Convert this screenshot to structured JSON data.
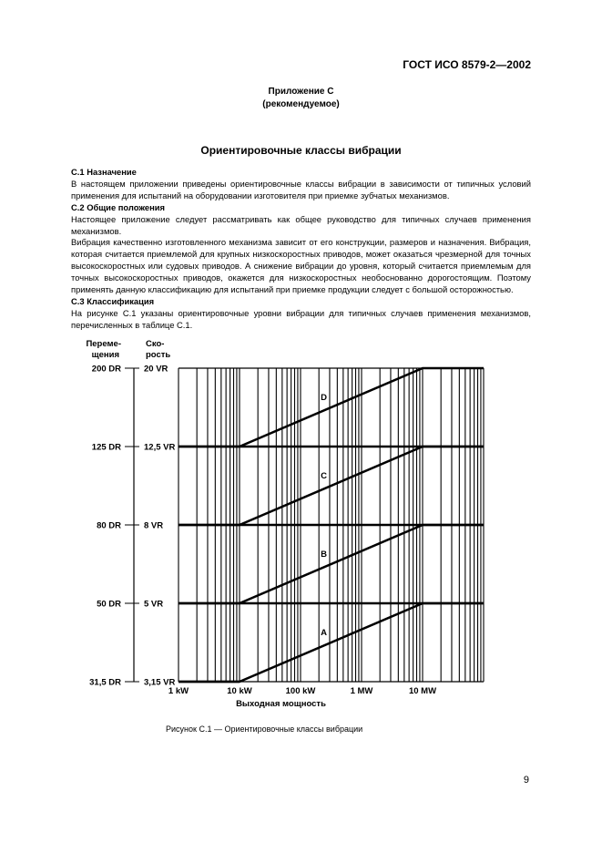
{
  "header": {
    "standard": "ГОСТ ИСО 8579-2—2002"
  },
  "annex": {
    "line1": "Приложение С",
    "line2": "(рекомендуемое)"
  },
  "title": "Ориентировочные классы вибрации",
  "sections": [
    {
      "heading": "С.1  Назначение",
      "paragraphs": [
        "В настоящем приложении приведены ориентировочные классы вибрации в зависимости от типичных условий применения для испытаний на оборудовании изготовителя при приемке зубчатых механизмов."
      ]
    },
    {
      "heading": "С.2  Общие положения",
      "paragraphs": [
        "Настоящее приложение следует рассматривать как общее руководство для типичных случаев применения механизмов.",
        "Вибрация качественно изготовленного механизма зависит от его конструкции, размеров и назначения. Вибрация, которая считается приемлемой для крупных низкоскоростных приводов, может оказаться чрезмерной для точных высокоскоростных или судовых приводов. А снижение вибрации до уровня, который считается приемлемым для точных высокоскоростных приводов, окажется для низкоскоростных необоснованно дорогостоящим. Поэтому применять данную классификацию для испытаний при приемке продукции следует с большой осторожностью."
      ]
    },
    {
      "heading": "С.3  Классификация",
      "paragraphs": [
        "На рисунке С.1  указаны ориентировочные уровни вибрации для типичных случаев применения механизмов, перечисленных в таблице С.1."
      ]
    }
  ],
  "chart_data": {
    "type": "line",
    "x_scale": "log",
    "xlabel": "Выходная мощность",
    "x_ticks": [
      "1 kW",
      "10 kW",
      "100 kW",
      "1 MW",
      "10 MW"
    ],
    "x_range_kW": [
      1,
      100000
    ],
    "y_scale": "log",
    "y_axis_left_title": [
      "Переме-",
      "щения"
    ],
    "y_axis_right_title": [
      "Ско-",
      "рость"
    ],
    "y_ticks_displacement": [
      "200 DR",
      "125 DR",
      "80 DR",
      "50 DR",
      "31,5 DR"
    ],
    "y_ticks_velocity": [
      "20 VR",
      "12,5 VR",
      "8 VR",
      "5 VR",
      "3,15 VR"
    ],
    "y_levels_velocity": [
      20,
      12.5,
      8,
      5,
      3.15
    ],
    "grid": true,
    "series": [
      {
        "name": "A",
        "x_kW": [
          1,
          10,
          10000,
          100000
        ],
        "y_VR": [
          3.15,
          3.15,
          5,
          5
        ]
      },
      {
        "name": "B",
        "x_kW": [
          1,
          10,
          10000,
          100000
        ],
        "y_VR": [
          5,
          5,
          8,
          8
        ]
      },
      {
        "name": "C",
        "x_kW": [
          1,
          10,
          10000,
          100000
        ],
        "y_VR": [
          8,
          8,
          12.5,
          12.5
        ]
      },
      {
        "name": "D",
        "x_kW": [
          1,
          10,
          10000,
          100000
        ],
        "y_VR": [
          12.5,
          12.5,
          20,
          20
        ]
      }
    ]
  },
  "caption": "Рисунок С.1 — Ориентировочные классы вибрации",
  "page_number": "9"
}
